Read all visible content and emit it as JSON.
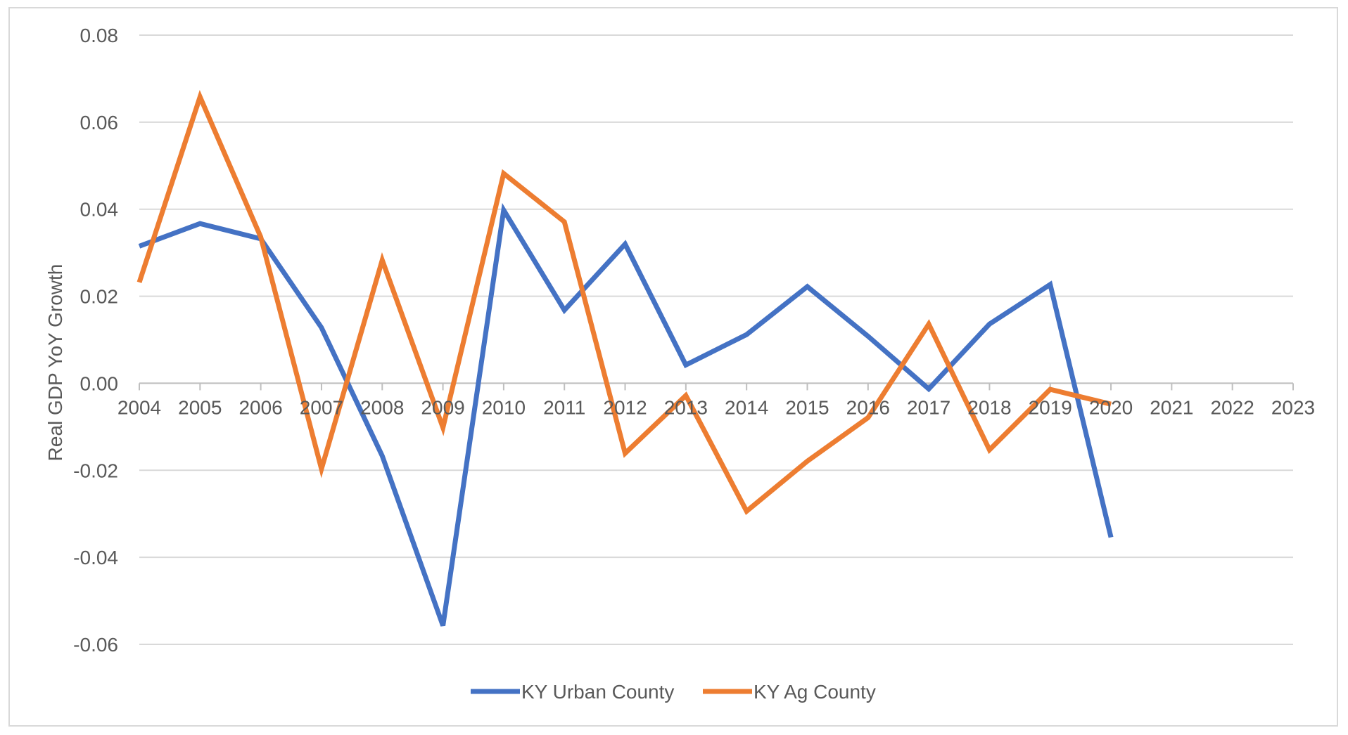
{
  "chart_data": {
    "type": "line",
    "title": "",
    "xlabel": "",
    "ylabel": "Real GDP YoY Growth",
    "x": [
      "2004",
      "2005",
      "2006",
      "2007",
      "2008",
      "2009",
      "2010",
      "2011",
      "2012",
      "2013",
      "2014",
      "2015",
      "2016",
      "2017",
      "2018",
      "2019",
      "2020",
      "2021",
      "2022",
      "2023"
    ],
    "ylim": [
      -0.06,
      0.08
    ],
    "yticks": [
      "-0.06",
      "-0.04",
      "-0.02",
      "0.00",
      "0.02",
      "0.04",
      "0.06",
      "0.08"
    ],
    "grid": true,
    "legend_position": "bottom",
    "series": [
      {
        "name": "KY Urban County",
        "color": "#4472c4",
        "values": [
          0.0315,
          0.0367,
          0.0332,
          0.0128,
          -0.0167,
          -0.0557,
          0.0398,
          0.0168,
          0.032,
          0.0042,
          0.0112,
          0.0222,
          0.0108,
          -0.0013,
          0.0136,
          0.0227,
          -0.0354,
          null,
          null,
          null
        ]
      },
      {
        "name": "KY Ag County",
        "color": "#ed7d31",
        "values": [
          0.0232,
          0.0658,
          0.0336,
          -0.0197,
          0.0283,
          -0.0102,
          0.0482,
          0.0371,
          -0.0161,
          -0.0028,
          -0.0294,
          -0.0179,
          -0.0079,
          0.0136,
          -0.0153,
          -0.0014,
          -0.0048,
          null,
          null,
          null
        ]
      }
    ]
  }
}
